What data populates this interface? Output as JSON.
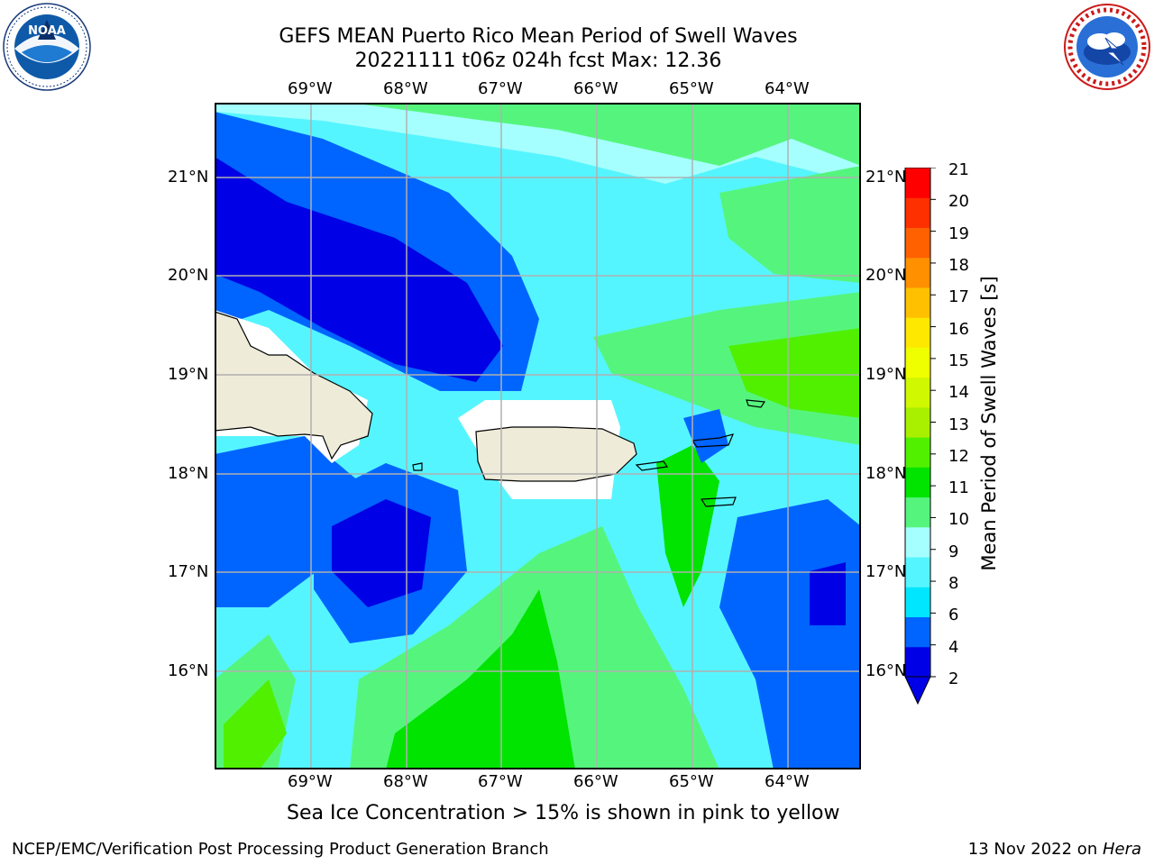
{
  "title": {
    "line1": "GEFS MEAN Puerto Rico Mean Period of Swell Waves",
    "line2": "20221111 t06z 024h fcst   Max: 12.36"
  },
  "map": {
    "lon_labels": [
      "69°W",
      "68°W",
      "67°W",
      "66°W",
      "65°W",
      "64°W"
    ],
    "lat_labels": [
      "21°N",
      "20°N",
      "19°N",
      "18°N",
      "17°N",
      "16°N"
    ],
    "land_color": "#eeebd9"
  },
  "colorbar": {
    "label": "Mean Period of Swell Waves [s]",
    "ticks": [
      "21",
      "20",
      "19",
      "18",
      "17",
      "16",
      "15",
      "14",
      "13",
      "12",
      "11",
      "10",
      "9",
      "8",
      "6",
      "4",
      "2"
    ],
    "colors": [
      "#0000e6",
      "#0064ff",
      "#00e6ff",
      "#55f5ff",
      "#a6ffff",
      "#55f57d",
      "#00e400",
      "#50f000",
      "#a8f000",
      "#d0f800",
      "#f0ff00",
      "#ffe800",
      "#ffc000",
      "#ff9000",
      "#ff6000",
      "#ff3000",
      "#ff0000"
    ]
  },
  "caption": "Sea Ice Concentration > 15% is shown in pink to yellow",
  "footer": {
    "left": "NCEP/EMC/Verification Post Processing Product Generation Branch",
    "right_date": "13 Nov 2022 on ",
    "right_host": "Hera"
  },
  "logos": {
    "noaa_text": "NOAA",
    "noaa_ring": "NATIONAL OCEANIC AND ATMOSPHERIC ADMINISTRATION · U.S. DEPARTMENT OF COMMERCE",
    "nws_ring": "NATIONAL WEATHER SERVICE"
  }
}
